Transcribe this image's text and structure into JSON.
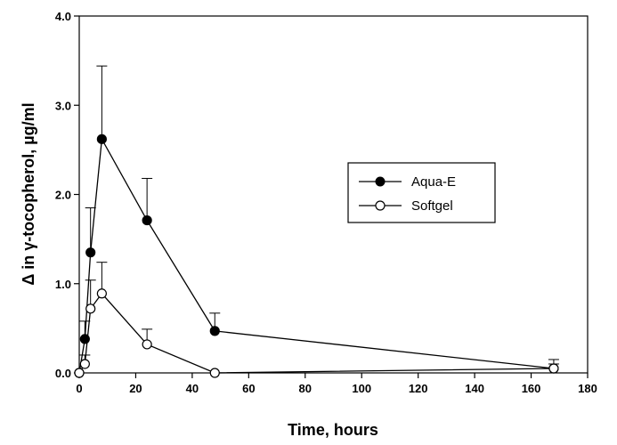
{
  "chart_data": {
    "type": "line",
    "title": "",
    "xlabel": "Time, hours",
    "ylabel": "Δ in γ-tocopherol, µg/ml",
    "xlim": [
      0,
      180
    ],
    "ylim": [
      0,
      4.0
    ],
    "x_ticks": [
      "0",
      "20",
      "40",
      "60",
      "80",
      "100",
      "120",
      "140",
      "160",
      "180"
    ],
    "y_ticks": [
      "0.0",
      "1.0",
      "2.0",
      "3.0",
      "4.0"
    ],
    "grid": false,
    "legend_position": "center-right",
    "series": [
      {
        "name": "Aqua-E",
        "marker": "filled-circle",
        "color": "#000000",
        "points": [
          {
            "x": 0,
            "y": 0.0,
            "err": 0
          },
          {
            "x": 2,
            "y": 0.38,
            "err": 0.2
          },
          {
            "x": 4,
            "y": 1.35,
            "err": 0.5
          },
          {
            "x": 8,
            "y": 2.62,
            "err": 0.82
          },
          {
            "x": 24,
            "y": 1.71,
            "err": 0.47
          },
          {
            "x": 48,
            "y": 0.47,
            "err": 0.2
          },
          {
            "x": 168,
            "y": 0.05,
            "err": 0.1
          }
        ]
      },
      {
        "name": "Softgel",
        "marker": "open-circle",
        "color": "#000000",
        "points": [
          {
            "x": 0,
            "y": 0.0,
            "err": 0
          },
          {
            "x": 2,
            "y": 0.1,
            "err": 0.1
          },
          {
            "x": 4,
            "y": 0.72,
            "err": 0.32
          },
          {
            "x": 8,
            "y": 0.89,
            "err": 0.35
          },
          {
            "x": 24,
            "y": 0.32,
            "err": 0.17
          },
          {
            "x": 48,
            "y": 0.0,
            "err": 0
          },
          {
            "x": 168,
            "y": 0.05,
            "err": 0.05
          }
        ]
      }
    ]
  }
}
